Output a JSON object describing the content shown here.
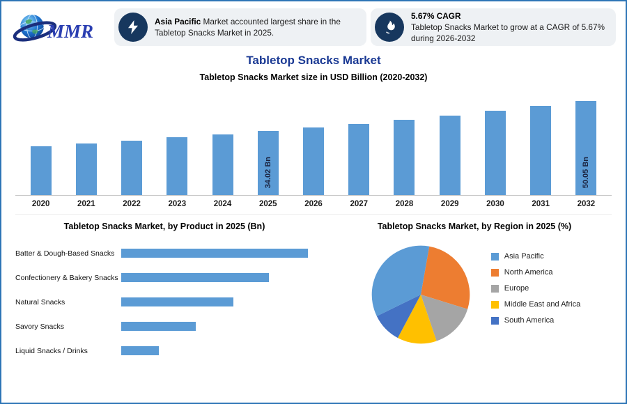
{
  "logo": {
    "text": "MMR"
  },
  "header": {
    "callout1": {
      "highlight": "Asia Pacific",
      "rest": " Market accounted largest share in the Tabletop Snacks Market in 2025.",
      "icon": "lightning-icon"
    },
    "callout2": {
      "title": "5.67% CAGR",
      "text": "Tabletop Snacks Market to grow at a CAGR of 5.67% during 2026-2032",
      "icon": "flame-icon"
    }
  },
  "title": "Tabletop Snacks Market",
  "subtitle": "Tabletop Snacks Market size in USD Billion (2020-2032)",
  "colors": {
    "bar_blue": "#5b9bd5",
    "title_blue": "#1b3a94",
    "badge_navy": "#17375e",
    "border_blue": "#2e75b6"
  },
  "chart_data": [
    {
      "type": "bar",
      "title": "Tabletop Snacks Market size in USD Billion (2020-2032)",
      "categories": [
        "2020",
        "2021",
        "2022",
        "2023",
        "2024",
        "2025",
        "2026",
        "2027",
        "2028",
        "2029",
        "2030",
        "2031",
        "2032"
      ],
      "values": [
        26.0,
        27.5,
        29.0,
        30.7,
        32.3,
        34.02,
        35.95,
        37.99,
        40.14,
        42.42,
        44.82,
        47.36,
        50.05
      ],
      "unit": "Bn",
      "bar_color": "#5b9bd5",
      "bar_labels": [
        {
          "category": "2025",
          "label": "34.02 Bn"
        },
        {
          "category": "2032",
          "label": "50.05 Bn"
        }
      ],
      "ylim": [
        0,
        52
      ],
      "grid": false,
      "legend": false
    },
    {
      "type": "bar",
      "orientation": "horizontal",
      "title": "Tabletop Snacks Market, by Product in 2025 (Bn)",
      "categories": [
        "Batter & Dough-Based Snacks",
        "Confectionery & Bakery Snacks",
        "Natural Snacks",
        "Savory Snacks",
        "Liquid Snacks / Drinks"
      ],
      "values": [
        10.0,
        7.9,
        6.0,
        4.0,
        2.0
      ],
      "bar_color": "#5b9bd5",
      "grid": false,
      "legend": false
    },
    {
      "type": "pie",
      "title": "Tabletop Snacks Market, by Region in 2025 (%)",
      "labels": [
        "Asia Pacific",
        "North America",
        "Europe",
        "Middle East and Africa",
        "South America"
      ],
      "values": [
        35,
        27,
        15,
        13,
        10
      ],
      "colors": [
        "#5b9bd5",
        "#ed7d31",
        "#a5a5a5",
        "#ffc000",
        "#4472c4"
      ],
      "legend_position": "right",
      "start_angle": 10,
      "draw_order": [
        1,
        2,
        3,
        4,
        0
      ]
    }
  ]
}
